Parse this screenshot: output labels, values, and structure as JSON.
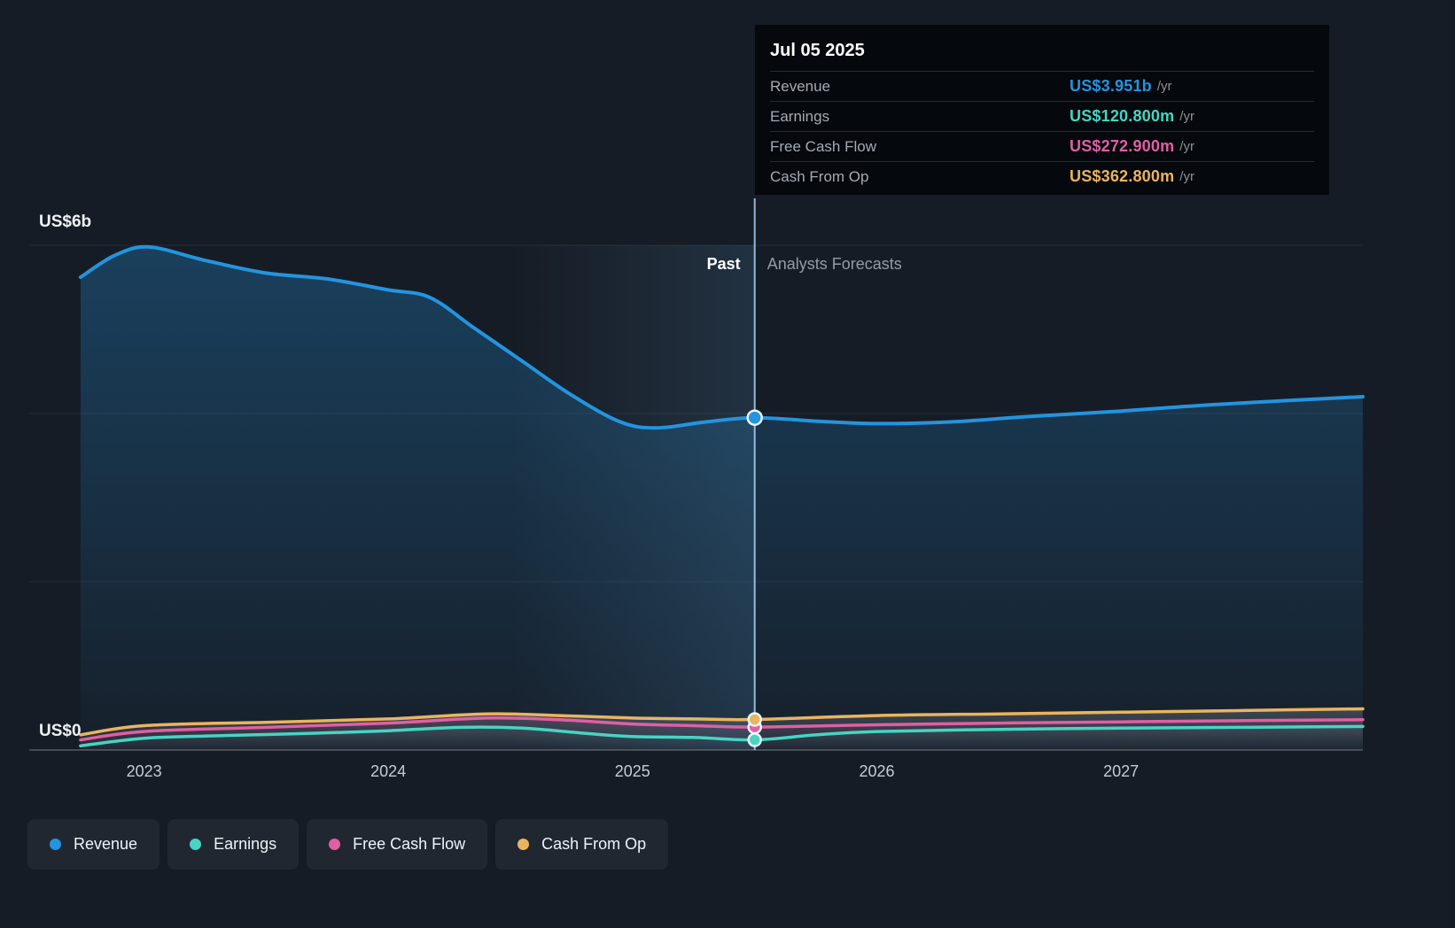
{
  "tooltip": {
    "date": "Jul 05 2025",
    "rows": [
      {
        "label": "Revenue",
        "value": "US$3.951b",
        "suffix": "/yr",
        "color": "#2394df"
      },
      {
        "label": "Earnings",
        "value": "US$120.800m",
        "suffix": "/yr",
        "color": "#47d4c3"
      },
      {
        "label": "Free Cash Flow",
        "value": "US$272.900m",
        "suffix": "/yr",
        "color": "#e05fa4"
      },
      {
        "label": "Cash From Op",
        "value": "US$362.800m",
        "suffix": "/yr",
        "color": "#ebb45f"
      }
    ]
  },
  "axis": {
    "y_top": "US$6b",
    "y_zero": "US$0",
    "x_ticks": [
      "2023",
      "2024",
      "2025",
      "2026",
      "2027"
    ]
  },
  "labels": {
    "past": "Past",
    "forecast": "Analysts Forecasts"
  },
  "legend": {
    "items": [
      {
        "label": "Revenue",
        "color": "#2394df"
      },
      {
        "label": "Earnings",
        "color": "#47d4c3"
      },
      {
        "label": "Free Cash Flow",
        "color": "#e05fa4"
      },
      {
        "label": "Cash From Op",
        "color": "#ebb45f"
      }
    ]
  },
  "chart_data": {
    "type": "area",
    "unit": "US$ billions per year",
    "xlim": [
      2022.53,
      2027.99
    ],
    "ylim": [
      0,
      6
    ],
    "x_tick_values": [
      2023,
      2024,
      2025,
      2026,
      2027
    ],
    "y_gridlines": [
      0,
      2,
      4,
      6
    ],
    "y_axis_labels": [
      {
        "value": 6,
        "label": "US$6b"
      },
      {
        "value": 0,
        "label": "US$0"
      }
    ],
    "divider_x": 2025.5,
    "divider_date_label": "Jul 05 2025",
    "highlight_band": [
      2024.5,
      2025.5
    ],
    "legend_position": "bottom-left",
    "grid": true,
    "series": [
      {
        "name": "Revenue",
        "color": "#2394df",
        "line_width": 4,
        "value_at_divider": 3.951,
        "x": [
          2022.74,
          2022.88,
          2023.02,
          2023.25,
          2023.5,
          2023.75,
          2024.0,
          2024.17,
          2024.35,
          2024.55,
          2024.75,
          2024.95,
          2025.1,
          2025.3,
          2025.5,
          2025.75,
          2026.0,
          2026.3,
          2026.6,
          2027.0,
          2027.4,
          2027.99
        ],
        "y": [
          5.62,
          5.88,
          5.98,
          5.82,
          5.67,
          5.6,
          5.47,
          5.38,
          5.02,
          4.62,
          4.22,
          3.9,
          3.83,
          3.9,
          3.951,
          3.91,
          3.88,
          3.9,
          3.96,
          4.03,
          4.11,
          4.2
        ]
      },
      {
        "name": "Earnings",
        "color": "#47d4c3",
        "line_width": 3.5,
        "value_at_divider": 0.1208,
        "x": [
          2022.74,
          2023.0,
          2023.3,
          2023.7,
          2024.0,
          2024.3,
          2024.55,
          2024.8,
          2025.0,
          2025.25,
          2025.5,
          2025.75,
          2026.0,
          2026.5,
          2027.0,
          2027.5,
          2027.99
        ],
        "y": [
          0.05,
          0.14,
          0.17,
          0.2,
          0.23,
          0.27,
          0.26,
          0.2,
          0.16,
          0.15,
          0.1208,
          0.18,
          0.22,
          0.245,
          0.26,
          0.27,
          0.28
        ]
      },
      {
        "name": "Free Cash Flow",
        "color": "#e05fa4",
        "line_width": 3.5,
        "value_at_divider": 0.2729,
        "x": [
          2022.74,
          2023.0,
          2023.5,
          2024.0,
          2024.4,
          2024.7,
          2025.0,
          2025.25,
          2025.5,
          2026.0,
          2026.5,
          2027.0,
          2027.5,
          2027.99
        ],
        "y": [
          0.12,
          0.22,
          0.27,
          0.32,
          0.38,
          0.36,
          0.31,
          0.29,
          0.2729,
          0.3,
          0.32,
          0.335,
          0.35,
          0.36
        ]
      },
      {
        "name": "Cash From Op",
        "color": "#ebb45f",
        "line_width": 3.5,
        "value_at_divider": 0.3628,
        "x": [
          2022.74,
          2023.0,
          2023.5,
          2024.0,
          2024.4,
          2024.7,
          2025.0,
          2025.25,
          2025.5,
          2026.0,
          2026.5,
          2027.0,
          2027.5,
          2027.99
        ],
        "y": [
          0.18,
          0.29,
          0.33,
          0.37,
          0.43,
          0.41,
          0.38,
          0.37,
          0.3628,
          0.41,
          0.43,
          0.45,
          0.47,
          0.49
        ]
      }
    ]
  }
}
